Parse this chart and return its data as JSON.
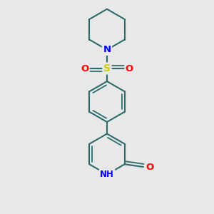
{
  "background_color": "#e8e8e8",
  "bond_color": "#2d6b6b",
  "N_color": "#0000ff",
  "O_color": "#ff0000",
  "S_color": "#cccc00",
  "line_width": 1.5,
  "figsize": [
    3.0,
    3.0
  ],
  "dpi": 100,
  "xlim": [
    -1.4,
    1.4
  ],
  "ylim": [
    -2.0,
    2.0
  ]
}
